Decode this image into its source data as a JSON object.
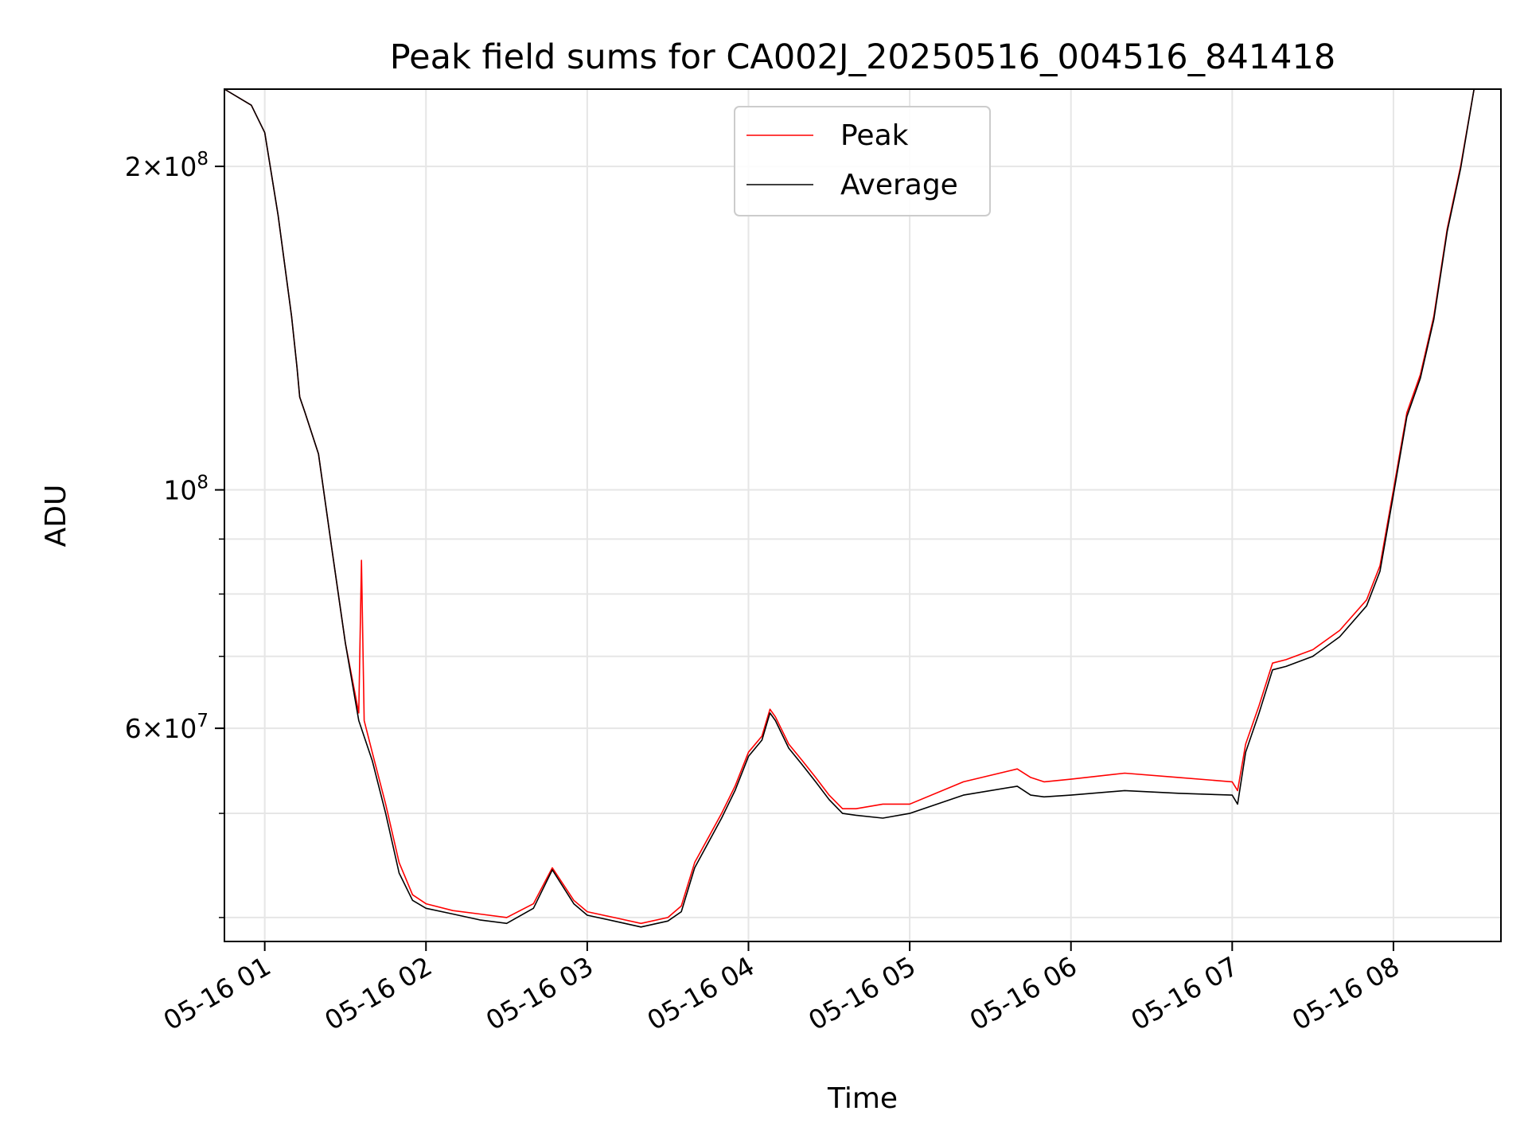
{
  "chart_data": {
    "type": "line",
    "title": "Peak field sums for CA002J_20250516_004516_841418",
    "xlabel": "Time",
    "ylabel": "ADU",
    "y_scale": "log",
    "xlim": [
      "2025-05-16 00:45",
      "2025-05-16 08:40"
    ],
    "ylim": [
      38000000.0,
      236000000.0
    ],
    "grid": true,
    "legend": "upper center",
    "x_ticks": [
      {
        "value": "2025-05-16 01:00",
        "label": "05-16 01"
      },
      {
        "value": "2025-05-16 02:00",
        "label": "05-16 02"
      },
      {
        "value": "2025-05-16 03:00",
        "label": "05-16 03"
      },
      {
        "value": "2025-05-16 04:00",
        "label": "05-16 04"
      },
      {
        "value": "2025-05-16 05:00",
        "label": "05-16 05"
      },
      {
        "value": "2025-05-16 06:00",
        "label": "05-16 06"
      },
      {
        "value": "2025-05-16 07:00",
        "label": "05-16 07"
      },
      {
        "value": "2025-05-16 08:00",
        "label": "05-16 08"
      }
    ],
    "y_major_ticks": [
      {
        "value": 60000000.0,
        "mant": "6",
        "exp": "7"
      },
      {
        "value": 100000000.0,
        "mant": "",
        "exp": "8"
      },
      {
        "value": 200000000.0,
        "mant": "2",
        "exp": "8"
      }
    ],
    "y_minor_gridlines": [
      40000000.0,
      50000000.0,
      60000000.0,
      70000000.0,
      80000000.0,
      90000000.0,
      100000000.0,
      200000000.0
    ],
    "series": [
      {
        "name": "Peak",
        "color": "#ff0000",
        "x": [
          "2025-05-16 00:45",
          "2025-05-16 00:55",
          "2025-05-16 01:00",
          "2025-05-16 01:05",
          "2025-05-16 01:10",
          "2025-05-16 01:12",
          "2025-05-16 01:13",
          "2025-05-16 01:15",
          "2025-05-16 01:20",
          "2025-05-16 01:25",
          "2025-05-16 01:30",
          "2025-05-16 01:35",
          "2025-05-16 01:36",
          "2025-05-16 01:37",
          "2025-05-16 01:40",
          "2025-05-16 01:45",
          "2025-05-16 01:50",
          "2025-05-16 01:55",
          "2025-05-16 02:00",
          "2025-05-16 02:10",
          "2025-05-16 02:20",
          "2025-05-16 02:30",
          "2025-05-16 02:40",
          "2025-05-16 02:47",
          "2025-05-16 02:55",
          "2025-05-16 03:00",
          "2025-05-16 03:10",
          "2025-05-16 03:20",
          "2025-05-16 03:30",
          "2025-05-16 03:35",
          "2025-05-16 03:40",
          "2025-05-16 03:50",
          "2025-05-16 03:55",
          "2025-05-16 04:00",
          "2025-05-16 04:05",
          "2025-05-16 04:08",
          "2025-05-16 04:10",
          "2025-05-16 04:15",
          "2025-05-16 04:20",
          "2025-05-16 04:25",
          "2025-05-16 04:30",
          "2025-05-16 04:35",
          "2025-05-16 04:40",
          "2025-05-16 04:50",
          "2025-05-16 05:00",
          "2025-05-16 05:20",
          "2025-05-16 05:40",
          "2025-05-16 05:45",
          "2025-05-16 05:50",
          "2025-05-16 06:00",
          "2025-05-16 06:20",
          "2025-05-16 06:40",
          "2025-05-16 07:00",
          "2025-05-16 07:02",
          "2025-05-16 07:05",
          "2025-05-16 07:10",
          "2025-05-16 07:15",
          "2025-05-16 07:20",
          "2025-05-16 07:30",
          "2025-05-16 07:40",
          "2025-05-16 07:50",
          "2025-05-16 07:55",
          "2025-05-16 08:00",
          "2025-05-16 08:05",
          "2025-05-16 08:10",
          "2025-05-16 08:15",
          "2025-05-16 08:20",
          "2025-05-16 08:25",
          "2025-05-16 08:30",
          "2025-05-16 08:40"
        ],
        "values": [
          236000000.0,
          228000000.0,
          215000000.0,
          180000000.0,
          145000000.0,
          130000000.0,
          122000000.0,
          118000000.0,
          108000000.0,
          88000000.0,
          72000000.0,
          62000000.0,
          86000000.0,
          61000000.0,
          57000000.0,
          51000000.0,
          45000000.0,
          42000000.0,
          41200000.0,
          40600000.0,
          40300000.0,
          40000000.0,
          41200000.0,
          44500000.0,
          41500000.0,
          40500000.0,
          40000000.0,
          39500000.0,
          40000000.0,
          41000000.0,
          45000000.0,
          50000000.0,
          53000000.0,
          57000000.0,
          59000000.0,
          62500000.0,
          61500000.0,
          58000000.0,
          56000000.0,
          54000000.0,
          52000000.0,
          50500000.0,
          50500000.0,
          51000000.0,
          51000000.0,
          53500000.0,
          55000000.0,
          54000000.0,
          53500000.0,
          53800000.0,
          54500000.0,
          54000000.0,
          53500000.0,
          52500000.0,
          58000000.0,
          63000000.0,
          69000000.0,
          69500000.0,
          71000000.0,
          74000000.0,
          79000000.0,
          85000000.0,
          100000000.0,
          118000000.0,
          128000000.0,
          145000000.0,
          175000000.0,
          200000000.0,
          236000000.0,
          236000000.0
        ]
      },
      {
        "name": "Average",
        "color": "#000000",
        "x": [
          "2025-05-16 00:45",
          "2025-05-16 00:55",
          "2025-05-16 01:00",
          "2025-05-16 01:05",
          "2025-05-16 01:10",
          "2025-05-16 01:12",
          "2025-05-16 01:13",
          "2025-05-16 01:15",
          "2025-05-16 01:20",
          "2025-05-16 01:25",
          "2025-05-16 01:30",
          "2025-05-16 01:35",
          "2025-05-16 01:40",
          "2025-05-16 01:45",
          "2025-05-16 01:50",
          "2025-05-16 01:55",
          "2025-05-16 02:00",
          "2025-05-16 02:10",
          "2025-05-16 02:20",
          "2025-05-16 02:30",
          "2025-05-16 02:40",
          "2025-05-16 02:47",
          "2025-05-16 02:55",
          "2025-05-16 03:00",
          "2025-05-16 03:10",
          "2025-05-16 03:20",
          "2025-05-16 03:30",
          "2025-05-16 03:35",
          "2025-05-16 03:40",
          "2025-05-16 03:50",
          "2025-05-16 03:55",
          "2025-05-16 04:00",
          "2025-05-16 04:05",
          "2025-05-16 04:08",
          "2025-05-16 04:10",
          "2025-05-16 04:15",
          "2025-05-16 04:20",
          "2025-05-16 04:25",
          "2025-05-16 04:30",
          "2025-05-16 04:35",
          "2025-05-16 04:40",
          "2025-05-16 04:50",
          "2025-05-16 05:00",
          "2025-05-16 05:20",
          "2025-05-16 05:40",
          "2025-05-16 05:45",
          "2025-05-16 05:50",
          "2025-05-16 06:00",
          "2025-05-16 06:20",
          "2025-05-16 06:40",
          "2025-05-16 07:00",
          "2025-05-16 07:02",
          "2025-05-16 07:05",
          "2025-05-16 07:10",
          "2025-05-16 07:15",
          "2025-05-16 07:20",
          "2025-05-16 07:30",
          "2025-05-16 07:40",
          "2025-05-16 07:50",
          "2025-05-16 07:55",
          "2025-05-16 08:00",
          "2025-05-16 08:05",
          "2025-05-16 08:10",
          "2025-05-16 08:15",
          "2025-05-16 08:20",
          "2025-05-16 08:25",
          "2025-05-16 08:30",
          "2025-05-16 08:40"
        ],
        "values": [
          236000000.0,
          228000000.0,
          215000000.0,
          180000000.0,
          145000000.0,
          130000000.0,
          122000000.0,
          118000000.0,
          108000000.0,
          88000000.0,
          72000000.0,
          61000000.0,
          56000000.0,
          50000000.0,
          44000000.0,
          41500000.0,
          40800000.0,
          40300000.0,
          39800000.0,
          39500000.0,
          40800000.0,
          44300000.0,
          41200000.0,
          40200000.0,
          39700000.0,
          39200000.0,
          39700000.0,
          40500000.0,
          44500000.0,
          49500000.0,
          52500000.0,
          56500000.0,
          58500000.0,
          62000000.0,
          61000000.0,
          57500000.0,
          55500000.0,
          53500000.0,
          51500000.0,
          50000000.0,
          49800000.0,
          49500000.0,
          50000000.0,
          52000000.0,
          53000000.0,
          52000000.0,
          51800000.0,
          52000000.0,
          52500000.0,
          52200000.0,
          52000000.0,
          51000000.0,
          57000000.0,
          62000000.0,
          68000000.0,
          68500000.0,
          70000000.0,
          73000000.0,
          78000000.0,
          84000000.0,
          99000000.0,
          117000000.0,
          127000000.0,
          144000000.0,
          174000000.0,
          199000000.0,
          236000000.0,
          236000000.0
        ]
      }
    ]
  }
}
